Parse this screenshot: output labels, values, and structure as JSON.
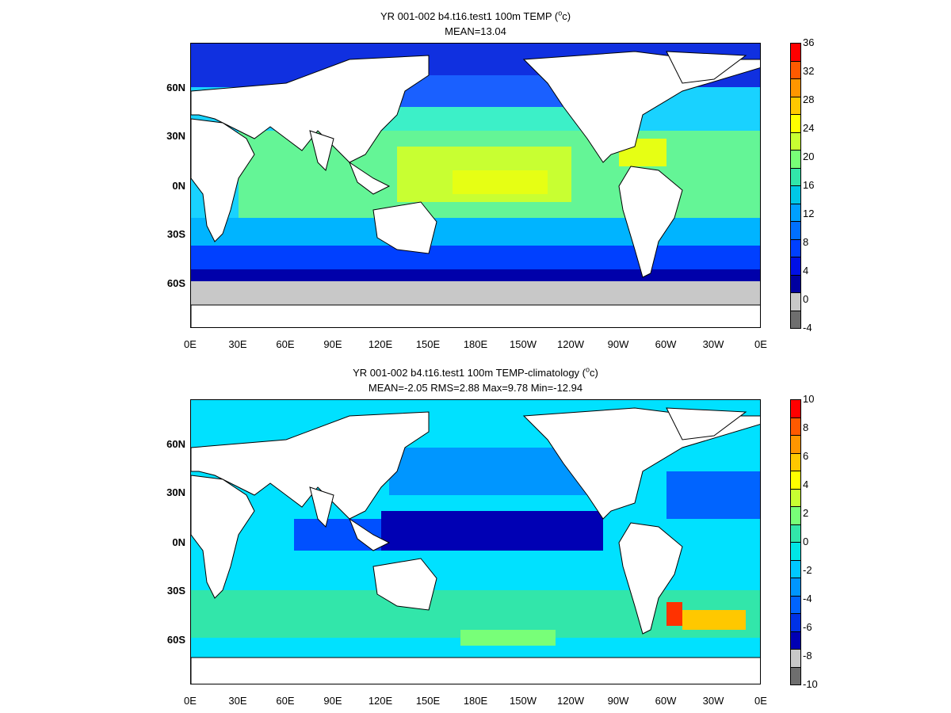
{
  "panels": [
    {
      "title_prefix": "YR 001-002 b4.t16.test1 100m TEMP (",
      "title_sup": "o",
      "title_suffix": "c)",
      "subtitle": "MEAN=13.04",
      "colorbar": {
        "labels": [
          "36",
          "32",
          "28",
          "24",
          "20",
          "16",
          "12",
          "8",
          "4",
          "0",
          "-4"
        ],
        "colors": [
          "#ff0000",
          "#ff5a00",
          "#ff9600",
          "#ffc800",
          "#ffff00",
          "#c8ff32",
          "#78ff78",
          "#32e6aa",
          "#00c8e6",
          "#00a0ff",
          "#0070ff",
          "#0040ff",
          "#0010e6",
          "#0000a0",
          "#c8c8c8",
          "#6e6e6e"
        ]
      },
      "ocean_fill": "#19c8c8",
      "land_fill": "#ffffff",
      "ice_fill": "#c8c8c8"
    },
    {
      "title_prefix": "YR 001-002 b4.t16.test1 100m TEMP-climatology (",
      "title_sup": "o",
      "title_suffix": "c)",
      "subtitle": "MEAN=-2.05   RMS=2.88   Max=9.78   Min=-12.94",
      "colorbar": {
        "labels": [
          "10",
          "8",
          "6",
          "4",
          "2",
          "0",
          "-2",
          "-4",
          "-6",
          "-8",
          "-10"
        ],
        "colors": [
          "#ff0000",
          "#ff5a00",
          "#ff9600",
          "#ffc800",
          "#ffff00",
          "#c8ff32",
          "#78ff78",
          "#32e6aa",
          "#00e6e6",
          "#00c8ff",
          "#0096ff",
          "#0064ff",
          "#0032e6",
          "#0000b4",
          "#c8c8c8",
          "#6e6e6e"
        ]
      },
      "ocean_fill": "#00e1ff",
      "land_fill": "#ffffff",
      "ice_fill": "#c8c8c8"
    }
  ],
  "lat_labels": [
    "60N",
    "30N",
    "0N",
    "30S",
    "60S"
  ],
  "lon_labels": [
    "0E",
    "30E",
    "60E",
    "90E",
    "120E",
    "150E",
    "180E",
    "150W",
    "120W",
    "90W",
    "60W",
    "30W",
    "0E"
  ]
}
